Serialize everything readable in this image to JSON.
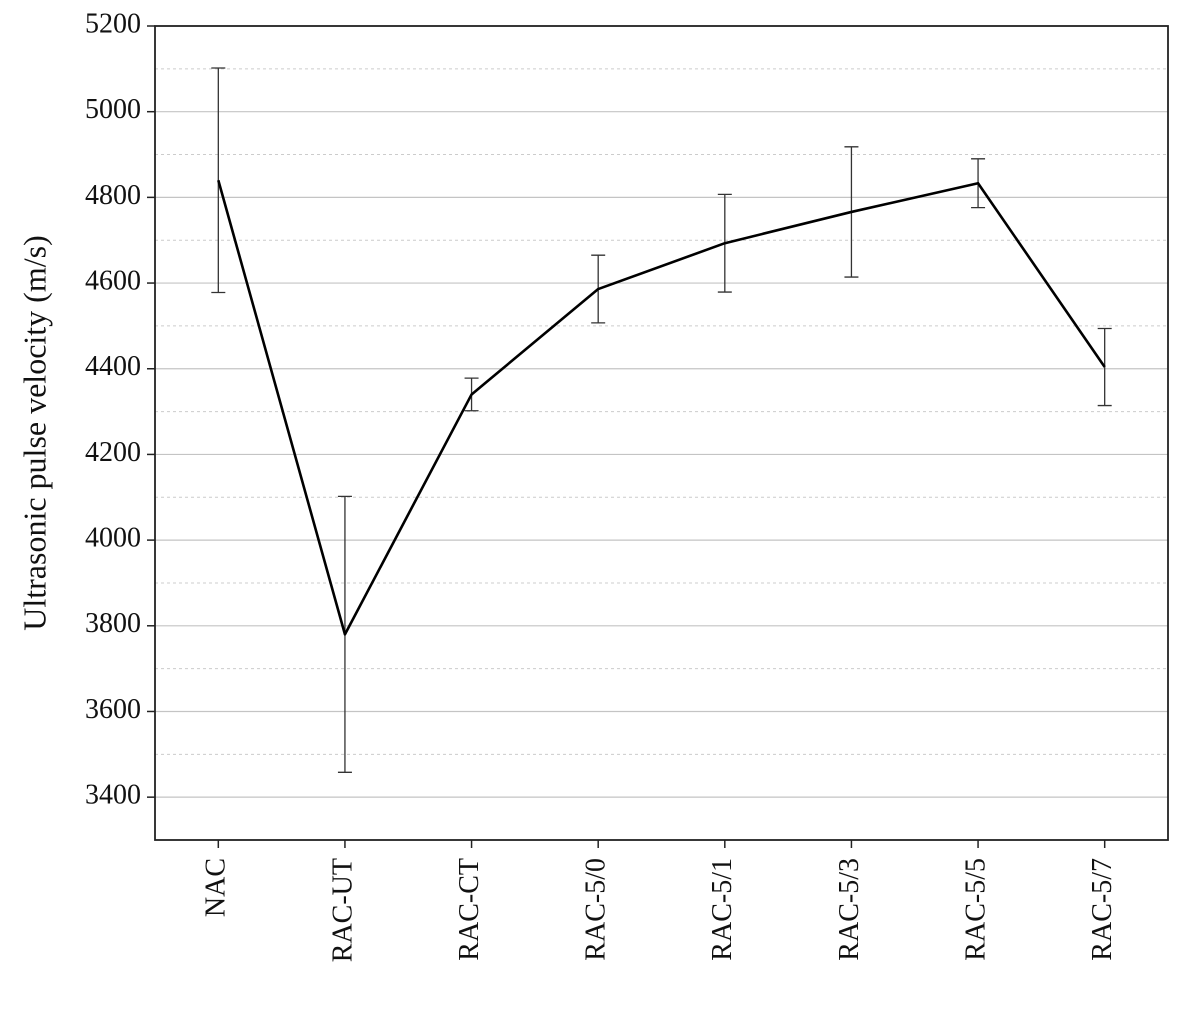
{
  "chart_data": {
    "type": "line",
    "y_label": "Ultrasonic pulse velocity (m/s)",
    "categories": [
      "NAC",
      "RAC-UT",
      "RAC-CT",
      "RAC-5/0",
      "RAC-5/1",
      "RAC-5/3",
      "RAC-5/5",
      "RAC-5/7"
    ],
    "values": [
      4840,
      3780,
      4340,
      4586,
      4693,
      4766,
      4833,
      4404
    ],
    "errors": [
      262,
      322,
      38,
      79,
      114,
      152,
      57,
      90
    ],
    "color": "#000000",
    "ylim": [
      3300,
      5200
    ],
    "yticks": [
      3400,
      3600,
      3800,
      4000,
      4200,
      4400,
      4600,
      4800,
      5000,
      5200
    ],
    "minor_yticks": [
      3500,
      3700,
      3900,
      4100,
      4300,
      4500,
      4700,
      4900,
      5100
    ],
    "grid": true
  }
}
